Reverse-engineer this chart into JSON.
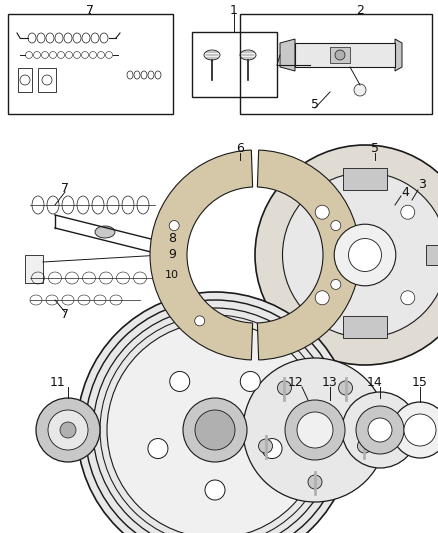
{
  "bg_color": "#ffffff",
  "fig_width": 4.38,
  "fig_height": 5.33,
  "dpi": 100,
  "line_color": "#1a1a1a",
  "gray_fill": "#e8e8e8",
  "dark_gray": "#b0b0b0",
  "mid_gray": "#c8c8c8",
  "light_gray": "#f0f0f0",
  "shoe_color": "#d4c8a8",
  "plate_color": "#e0dcd4"
}
